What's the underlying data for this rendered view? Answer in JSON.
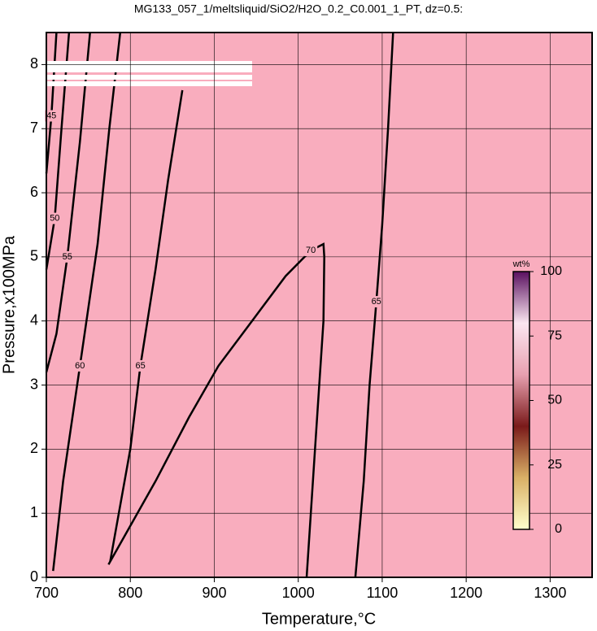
{
  "chart_data": {
    "type": "contour",
    "title": "MG133_057_1/meltsliquid/SiO2/H2O_0.2_C0.001_1_PT, dz=0.5:",
    "x_label": "Temperature,°C",
    "y_label": "Pressure,x100MPa",
    "xlim": [
      700,
      1350
    ],
    "ylim": [
      0,
      8.5
    ],
    "xticks": [
      700,
      800,
      900,
      1000,
      1100,
      1200,
      1300
    ],
    "yticks": [
      0,
      1,
      2,
      3,
      4,
      5,
      6,
      7,
      8
    ],
    "grid": true,
    "background": "#f9adbe",
    "contours": [
      {
        "level": 45,
        "x": [
          712,
          706,
          700
        ],
        "y": [
          8.5,
          7.2,
          6.3
        ]
      },
      {
        "level": 50,
        "x": [
          727,
          718,
          710,
          700
        ],
        "y": [
          8.5,
          7.0,
          5.6,
          4.8
        ]
      },
      {
        "level": 55,
        "x": [
          752,
          740,
          725,
          712,
          700
        ],
        "y": [
          8.5,
          6.8,
          5.0,
          3.8,
          3.2
        ]
      },
      {
        "level": 60,
        "x": [
          788,
          775,
          761,
          740,
          720,
          708
        ],
        "y": [
          8.5,
          7.0,
          5.2,
          3.3,
          1.5,
          0.1
        ]
      },
      {
        "level": 65,
        "x": [
          862,
          845,
          830,
          812,
          800,
          776
        ],
        "y": [
          7.6,
          6.2,
          4.8,
          3.3,
          2.0,
          0.25
        ]
      },
      {
        "level": 70,
        "x": [
          774,
          830,
          870,
          905,
          945,
          985,
          1015,
          1030,
          1031,
          1030,
          1025,
          1020,
          1010
        ],
        "y": [
          0.2,
          1.5,
          2.5,
          3.3,
          4.0,
          4.7,
          5.1,
          5.2,
          5.0,
          4.0,
          3.0,
          2.0,
          0
        ]
      },
      {
        "level": 65,
        "x": [
          1068,
          1078,
          1085,
          1093,
          1100,
          1107,
          1113
        ],
        "y": [
          0,
          1.5,
          3.0,
          4.3,
          5.5,
          7.0,
          8.5
        ]
      }
    ],
    "colorbar": {
      "label": "wt%",
      "lim": [
        0,
        100
      ],
      "ticks": [
        0,
        25,
        50,
        75,
        100
      ],
      "colors": [
        "#ffffcc",
        "#d9b066",
        "#7a1a1a",
        "#e8a0b0",
        "#fbe6f0",
        "#5a1060"
      ]
    }
  }
}
